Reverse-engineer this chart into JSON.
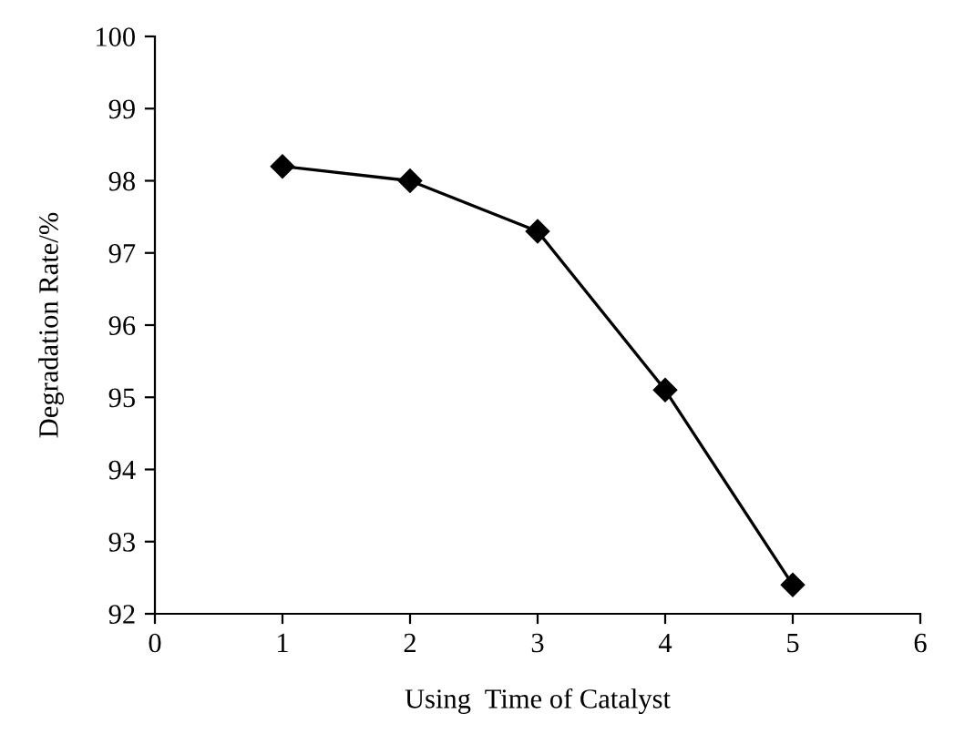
{
  "chart_data": {
    "type": "line",
    "xlabel": "Using  Time of Catalyst",
    "ylabel": "Degradation Rate/%",
    "x": [
      1,
      2,
      3,
      4,
      5
    ],
    "series": [
      {
        "color": "#000000",
        "values": [
          98.2,
          98.0,
          97.3,
          95.1,
          92.4
        ]
      }
    ],
    "marker": "diamond",
    "line_style": "solid",
    "xlim": [
      0,
      6
    ],
    "xticks": [
      0,
      1,
      2,
      3,
      4,
      5,
      6
    ],
    "ylim": [
      92,
      100
    ],
    "yticks": [
      92,
      93,
      94,
      95,
      96,
      97,
      98,
      99,
      100
    ],
    "grid": false,
    "legend": false
  }
}
